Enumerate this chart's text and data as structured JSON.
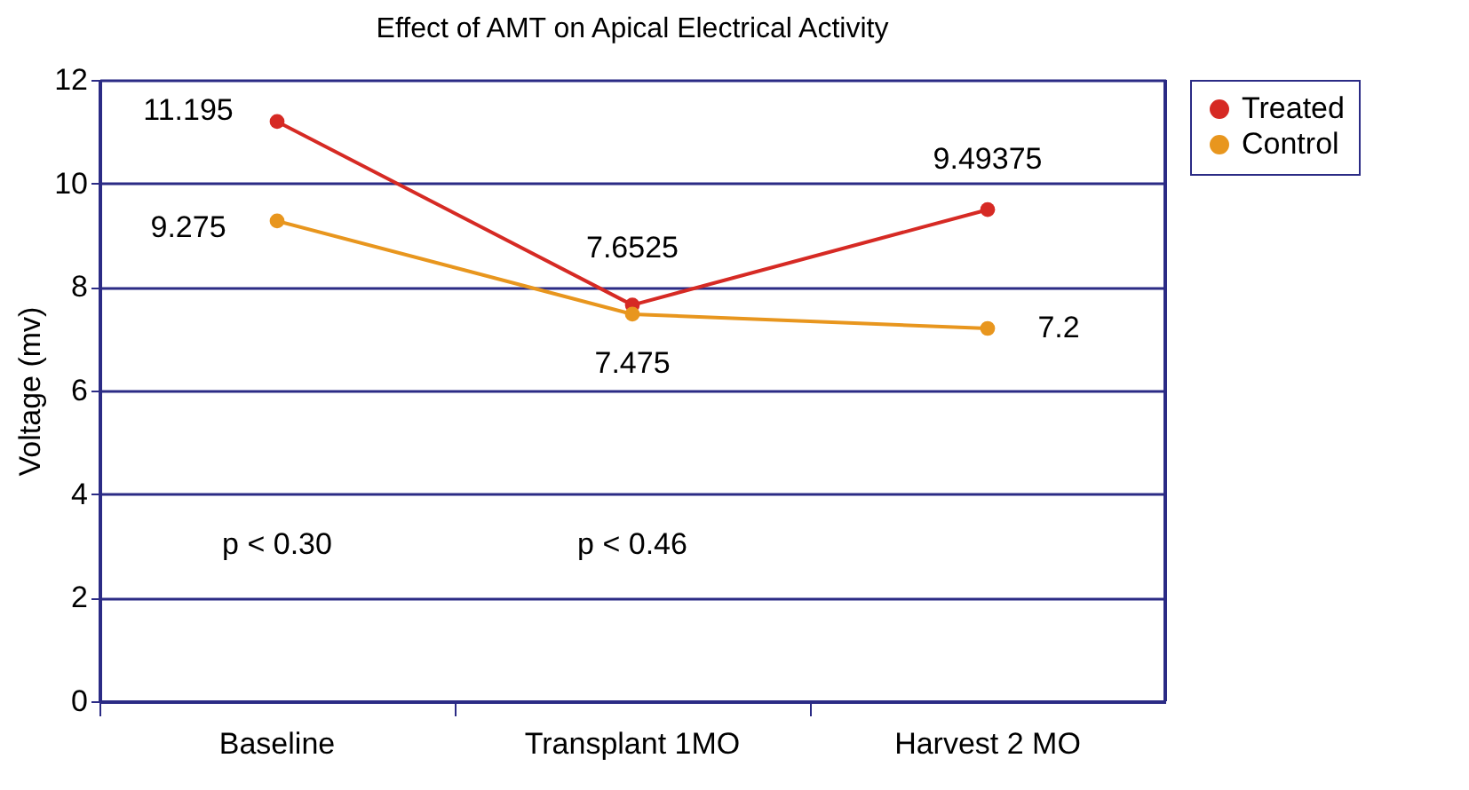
{
  "chart_data": {
    "type": "line",
    "title": "Effect of AMT on Apical Electrical Activity",
    "ylabel": "Voltage (mv)",
    "categories": [
      "Baseline",
      "Transplant 1MO",
      "Harvest 2 MO"
    ],
    "series": [
      {
        "name": "Treated",
        "color": "#d62a24",
        "values": [
          11.195,
          7.6525,
          9.49375
        ]
      },
      {
        "name": "Control",
        "color": "#e8961e",
        "values": [
          9.275,
          7.475,
          7.2
        ]
      }
    ],
    "ylim": [
      0,
      12
    ],
    "yticks": [
      0,
      2,
      4,
      6,
      8,
      10,
      12
    ],
    "grid": "y",
    "legend": "right",
    "marker": "circle",
    "line_style": "solid",
    "data_labels": true,
    "annotations": [
      "p < 0.30",
      "p < 0.46"
    ]
  }
}
